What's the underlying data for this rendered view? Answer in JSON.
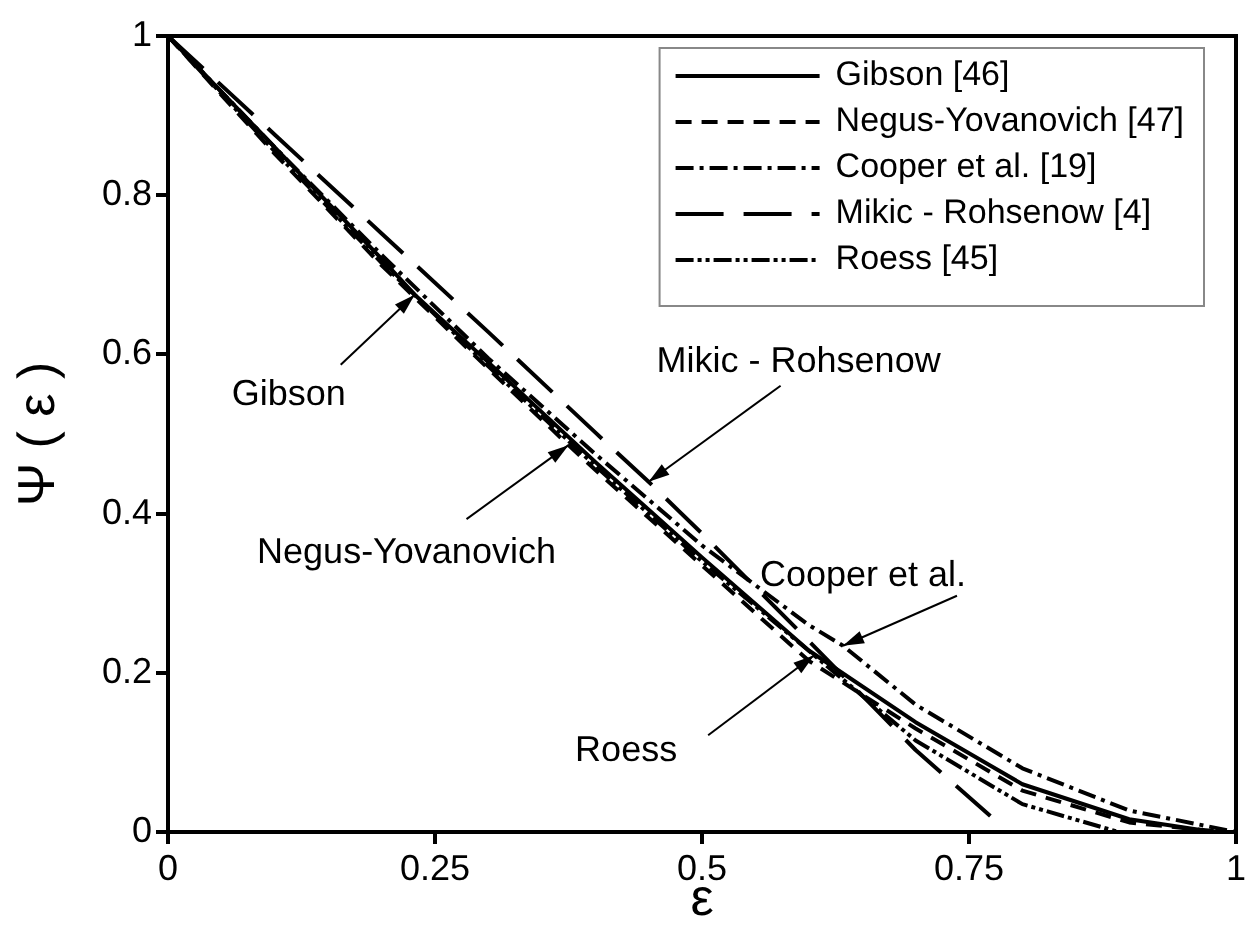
{
  "chart_data": {
    "type": "line",
    "xlabel": "ε",
    "ylabel": "Ψ ( ε )",
    "xlim": [
      0,
      1
    ],
    "ylim": [
      0,
      1
    ],
    "xticks": [
      0,
      0.25,
      0.5,
      0.75,
      1
    ],
    "yticks": [
      0,
      0.2,
      0.4,
      0.6,
      0.8,
      1
    ],
    "grid": false,
    "legend": "top right",
    "marker": "none",
    "series": [
      {
        "name": "Gibson [46]",
        "color": "#000000",
        "line_style": "solid",
        "x": [
          0,
          0.1,
          0.2,
          0.231,
          0.3,
          0.4,
          0.5,
          0.6,
          0.7,
          0.8,
          0.9,
          0.97
        ],
        "values": [
          1,
          0.86,
          0.72,
          0.675,
          0.59,
          0.465,
          0.345,
          0.228,
          0.138,
          0.06,
          0.016,
          0.002
        ]
      },
      {
        "name": "Negus-Yovanovich [47]",
        "color": "#000000",
        "line_style": "dashed",
        "x": [
          0,
          0.1,
          0.2,
          0.3,
          0.375,
          0.4,
          0.5,
          0.6,
          0.7,
          0.8,
          0.9,
          0.98
        ],
        "values": [
          1,
          0.852,
          0.712,
          0.582,
          0.486,
          0.455,
          0.335,
          0.215,
          0.13,
          0.052,
          0.012,
          0.001
        ]
      },
      {
        "name": "Cooper et al. [19]",
        "color": "#000000",
        "line_style": "dashed",
        "x": [
          0,
          0.1,
          0.2,
          0.3,
          0.4,
          0.5,
          0.6,
          0.632,
          0.7,
          0.8,
          0.9,
          1
        ],
        "values": [
          1,
          0.86,
          0.725,
          0.595,
          0.475,
          0.36,
          0.26,
          0.234,
          0.16,
          0.08,
          0.027,
          0
        ]
      },
      {
        "name": "Mikic - Rohsenow [4]",
        "color": "#000000",
        "line_style": "dashed",
        "x": [
          0,
          0.1,
          0.2,
          0.3,
          0.4,
          0.45,
          0.5,
          0.6,
          0.7,
          0.77
        ],
        "values": [
          1,
          0.876,
          0.752,
          0.628,
          0.502,
          0.44,
          0.375,
          0.24,
          0.103,
          0.02
        ]
      },
      {
        "name": "Roess [45]",
        "color": "#000000",
        "line_style": "dashed",
        "x": [
          0,
          0.1,
          0.2,
          0.3,
          0.4,
          0.5,
          0.605,
          0.7,
          0.8,
          0.89
        ],
        "values": [
          1,
          0.855,
          0.715,
          0.585,
          0.46,
          0.34,
          0.222,
          0.115,
          0.035,
          0
        ]
      }
    ],
    "annotations": [
      {
        "text": "Gibson",
        "x": 0.231,
        "y": 0.675
      },
      {
        "text": "Negus-Yovanovich",
        "x": 0.375,
        "y": 0.486
      },
      {
        "text": "Mikic - Rohsenow",
        "x": 0.45,
        "y": 0.44
      },
      {
        "text": "Cooper et al.",
        "x": 0.632,
        "y": 0.234
      },
      {
        "text": "Roess",
        "x": 0.605,
        "y": 0.222
      }
    ]
  }
}
